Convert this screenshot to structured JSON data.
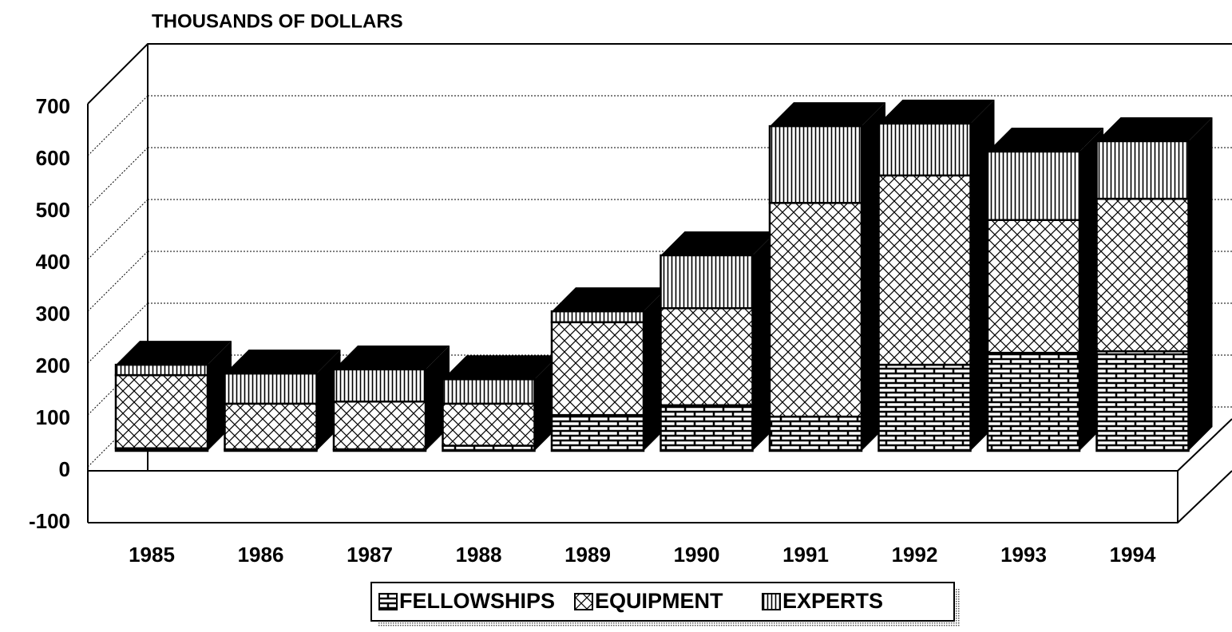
{
  "chart_data": {
    "type": "bar",
    "stacked": true,
    "title": "THOUSANDS OF DOLLARS",
    "categories": [
      "1985",
      "1986",
      "1987",
      "1988",
      "1989",
      "1990",
      "1991",
      "1992",
      "1993",
      "1994"
    ],
    "series": [
      {
        "name": "FELLOWSHIPS",
        "color": "#000000",
        "values": [
          5,
          3,
          3,
          10,
          69,
          88,
          66,
          166,
          189,
          192
        ]
      },
      {
        "name": "EQUIPMENT",
        "color": "#000000",
        "values": [
          141,
          88,
          92,
          81,
          179,
          187,
          412,
          365,
          256,
          294
        ]
      },
      {
        "name": "EXPERTS",
        "color": "#000000",
        "values": [
          20,
          58,
          62,
          47,
          21,
          102,
          148,
          100,
          132,
          111
        ]
      }
    ],
    "ylim": [
      -100,
      700
    ],
    "yticks": [
      -100,
      0,
      100,
      200,
      300,
      400,
      500,
      600,
      700
    ],
    "grid": true,
    "legend": "bottom"
  }
}
